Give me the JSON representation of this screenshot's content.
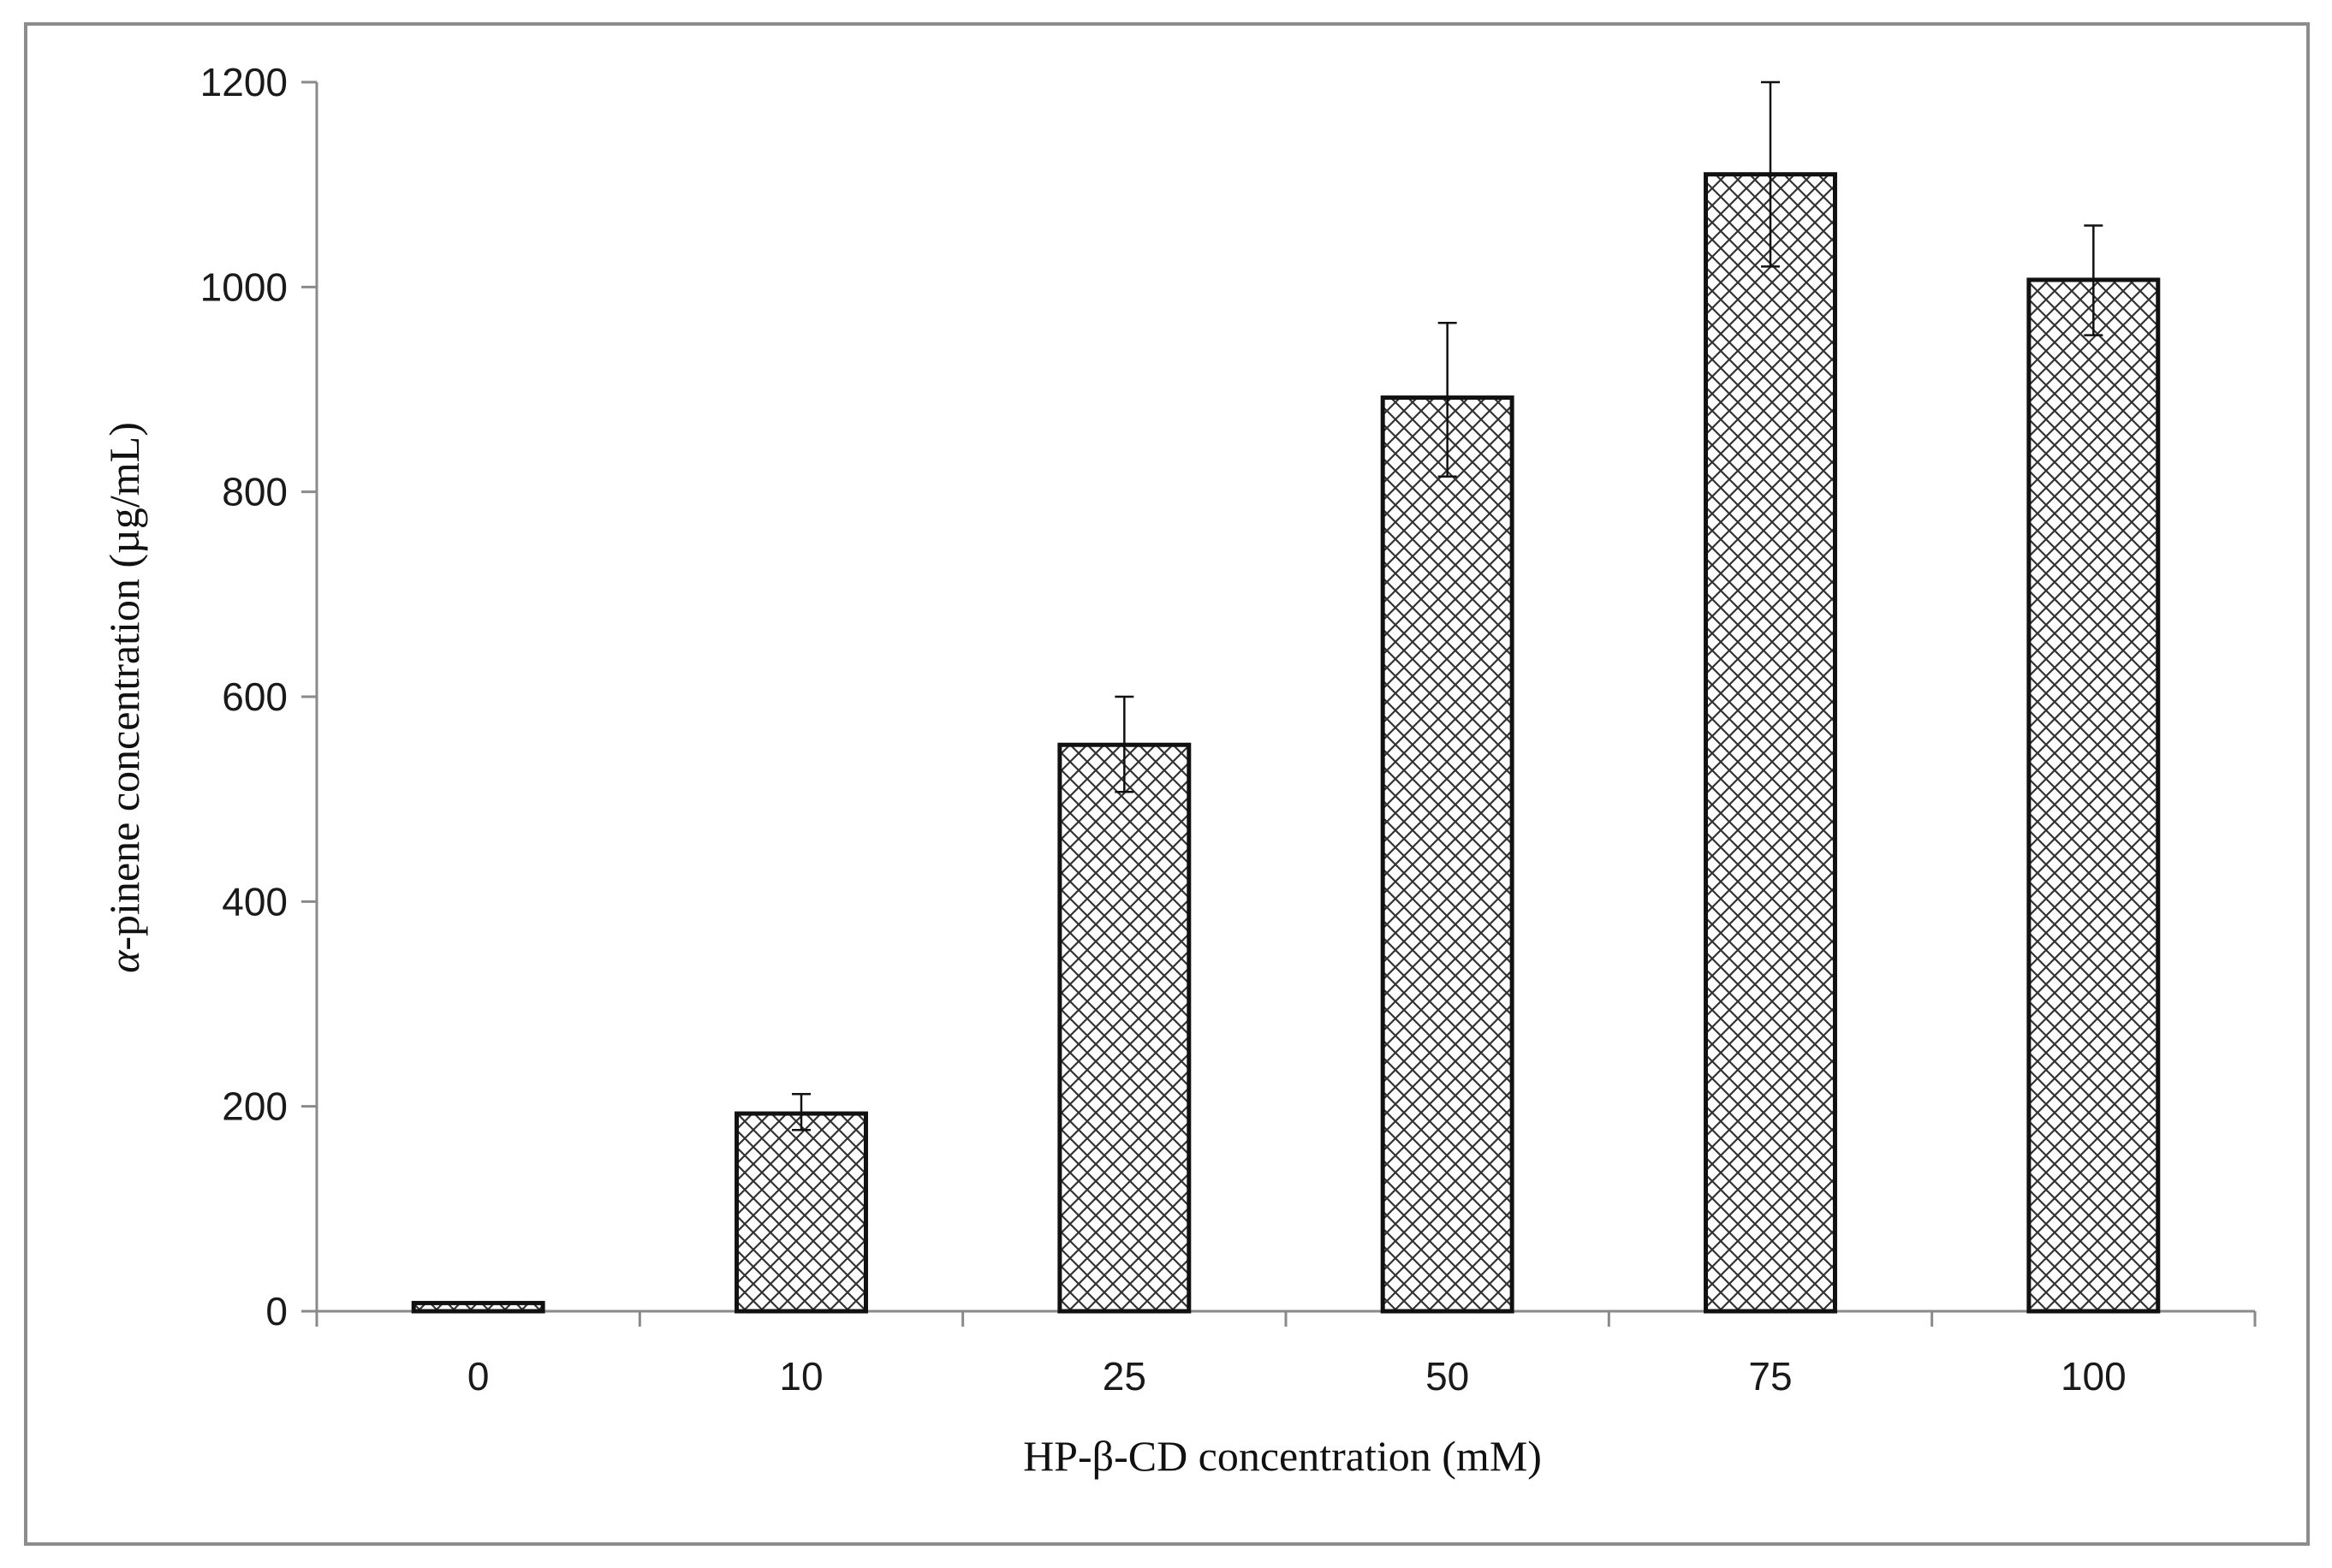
{
  "chart_data": {
    "type": "bar",
    "title": "",
    "xlabel": "HP-β-CD concentration (mM)",
    "ylabel_prefix": "α",
    "ylabel_rest": "-pinene concentration (µg/mL)",
    "categories": [
      "0",
      "10",
      "25",
      "50",
      "75",
      "100"
    ],
    "values": [
      8,
      193,
      553,
      892,
      1110,
      1007
    ],
    "error_upper": [
      0,
      212,
      600,
      965,
      1200,
      1060
    ],
    "error_lower": [
      0,
      177,
      507,
      815,
      1020,
      953
    ],
    "ylim": [
      0,
      1200
    ],
    "yticks": [
      "0",
      "200",
      "400",
      "600",
      "800",
      "1000",
      "1200"
    ],
    "grid": false,
    "legend": "none",
    "bar_fill_pattern": "crosshatch",
    "colors": {
      "bar_stroke": "#111111",
      "hatch": "#333333",
      "axis": "#8a8a8a",
      "frame": "#8c8c8c"
    }
  }
}
